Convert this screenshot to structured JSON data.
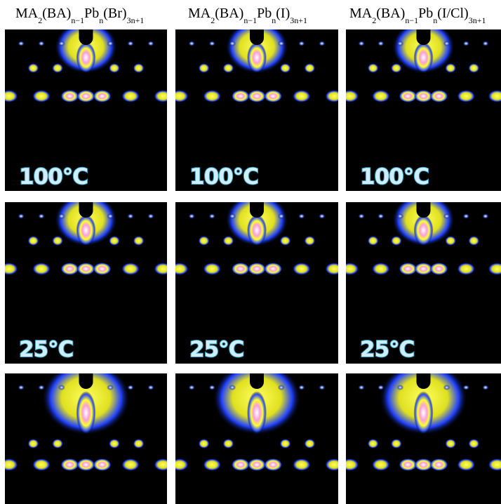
{
  "columns": [
    {
      "formula": [
        "MA",
        "2",
        "(BA)",
        "n−1",
        "Pb",
        "n",
        "(Br)",
        "3n+1"
      ]
    },
    {
      "formula": [
        "MA",
        "2",
        "(BA)",
        "n−1",
        "Pb",
        "n",
        "(I)",
        "3n+1"
      ]
    },
    {
      "formula": [
        "MA",
        "2",
        "(BA)",
        "n−1",
        "Pb",
        "n",
        "(I/Cl)",
        "3n+1"
      ]
    }
  ],
  "temperatures": [
    "100°C",
    "25°C"
  ]
}
